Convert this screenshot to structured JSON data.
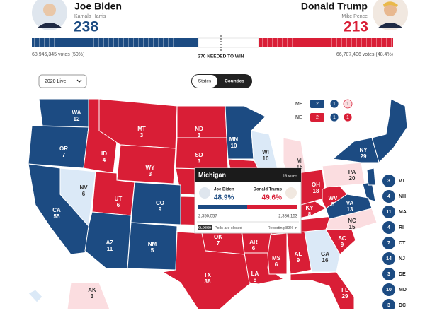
{
  "header": {
    "left": {
      "name": "Joe Biden",
      "running_mate": "Kamala Harris",
      "electoral_votes": 238,
      "popular_votes": "68,946,345 votes (50%)"
    },
    "right": {
      "name": "Donald Trump",
      "running_mate": "Mike Pence",
      "electoral_votes": 213,
      "popular_votes": "66,707,406 votes (48.4%)"
    },
    "threshold": "270 NEEDED TO WIN"
  },
  "controls": {
    "year": "2020 Live",
    "toggle": [
      "States",
      "Counties"
    ]
  },
  "splits": [
    {
      "state": "ME",
      "districts": [
        2,
        1,
        1
      ]
    },
    {
      "state": "NE",
      "districts": [
        2,
        1,
        1
      ]
    }
  ],
  "states": [
    {
      "abbr": "WA",
      "votes": 12
    },
    {
      "abbr": "OR",
      "votes": 7
    },
    {
      "abbr": "CA",
      "votes": 55
    },
    {
      "abbr": "NV",
      "votes": 6
    },
    {
      "abbr": "ID",
      "votes": 4
    },
    {
      "abbr": "MT",
      "votes": 3
    },
    {
      "abbr": "WY",
      "votes": 3
    },
    {
      "abbr": "UT",
      "votes": 6
    },
    {
      "abbr": "AZ",
      "votes": 11
    },
    {
      "abbr": "CO",
      "votes": 9
    },
    {
      "abbr": "NM",
      "votes": 5
    },
    {
      "abbr": "ND",
      "votes": 3
    },
    {
      "abbr": "SD",
      "votes": 3
    },
    {
      "abbr": "MN",
      "votes": 10
    },
    {
      "abbr": "WI",
      "votes": 10
    },
    {
      "abbr": "MI",
      "votes": 16
    },
    {
      "abbr": "OK",
      "votes": 7
    },
    {
      "abbr": "TX",
      "votes": 38
    },
    {
      "abbr": "AR",
      "votes": 6
    },
    {
      "abbr": "LA",
      "votes": 8
    },
    {
      "abbr": "MS",
      "votes": 6
    },
    {
      "abbr": "AL",
      "votes": 9
    },
    {
      "abbr": "GA",
      "votes": 16
    },
    {
      "abbr": "FL",
      "votes": 29
    },
    {
      "abbr": "SC",
      "votes": 9
    },
    {
      "abbr": "NC",
      "votes": 15
    },
    {
      "abbr": "KY",
      "votes": 8
    },
    {
      "abbr": "OH",
      "votes": 18
    },
    {
      "abbr": "WV",
      "votes": 5
    },
    {
      "abbr": "VA",
      "votes": 13
    },
    {
      "abbr": "PA",
      "votes": 20
    },
    {
      "abbr": "NY",
      "votes": 29
    },
    {
      "abbr": "AK",
      "votes": 3
    }
  ],
  "small_states": [
    {
      "abbr": "VT",
      "votes": 3
    },
    {
      "abbr": "NH",
      "votes": 4
    },
    {
      "abbr": "MA",
      "votes": 11
    },
    {
      "abbr": "RI",
      "votes": 4
    },
    {
      "abbr": "CT",
      "votes": 7
    },
    {
      "abbr": "NJ",
      "votes": 14
    },
    {
      "abbr": "DE",
      "votes": 3
    },
    {
      "abbr": "MD",
      "votes": 10
    },
    {
      "abbr": "DC",
      "votes": 3
    }
  ],
  "popup": {
    "state": "Michigan",
    "votes": "16 votes",
    "left_name": "Joe Biden",
    "left_pct": "48.9%",
    "right_name": "Donald Trump",
    "right_pct": "49.6%",
    "left_votes": "2,350,057",
    "right_votes": "2,386,153",
    "status": "CLOSED",
    "status_text": "Polls are closed",
    "reporting": "Reporting 89% in"
  }
}
